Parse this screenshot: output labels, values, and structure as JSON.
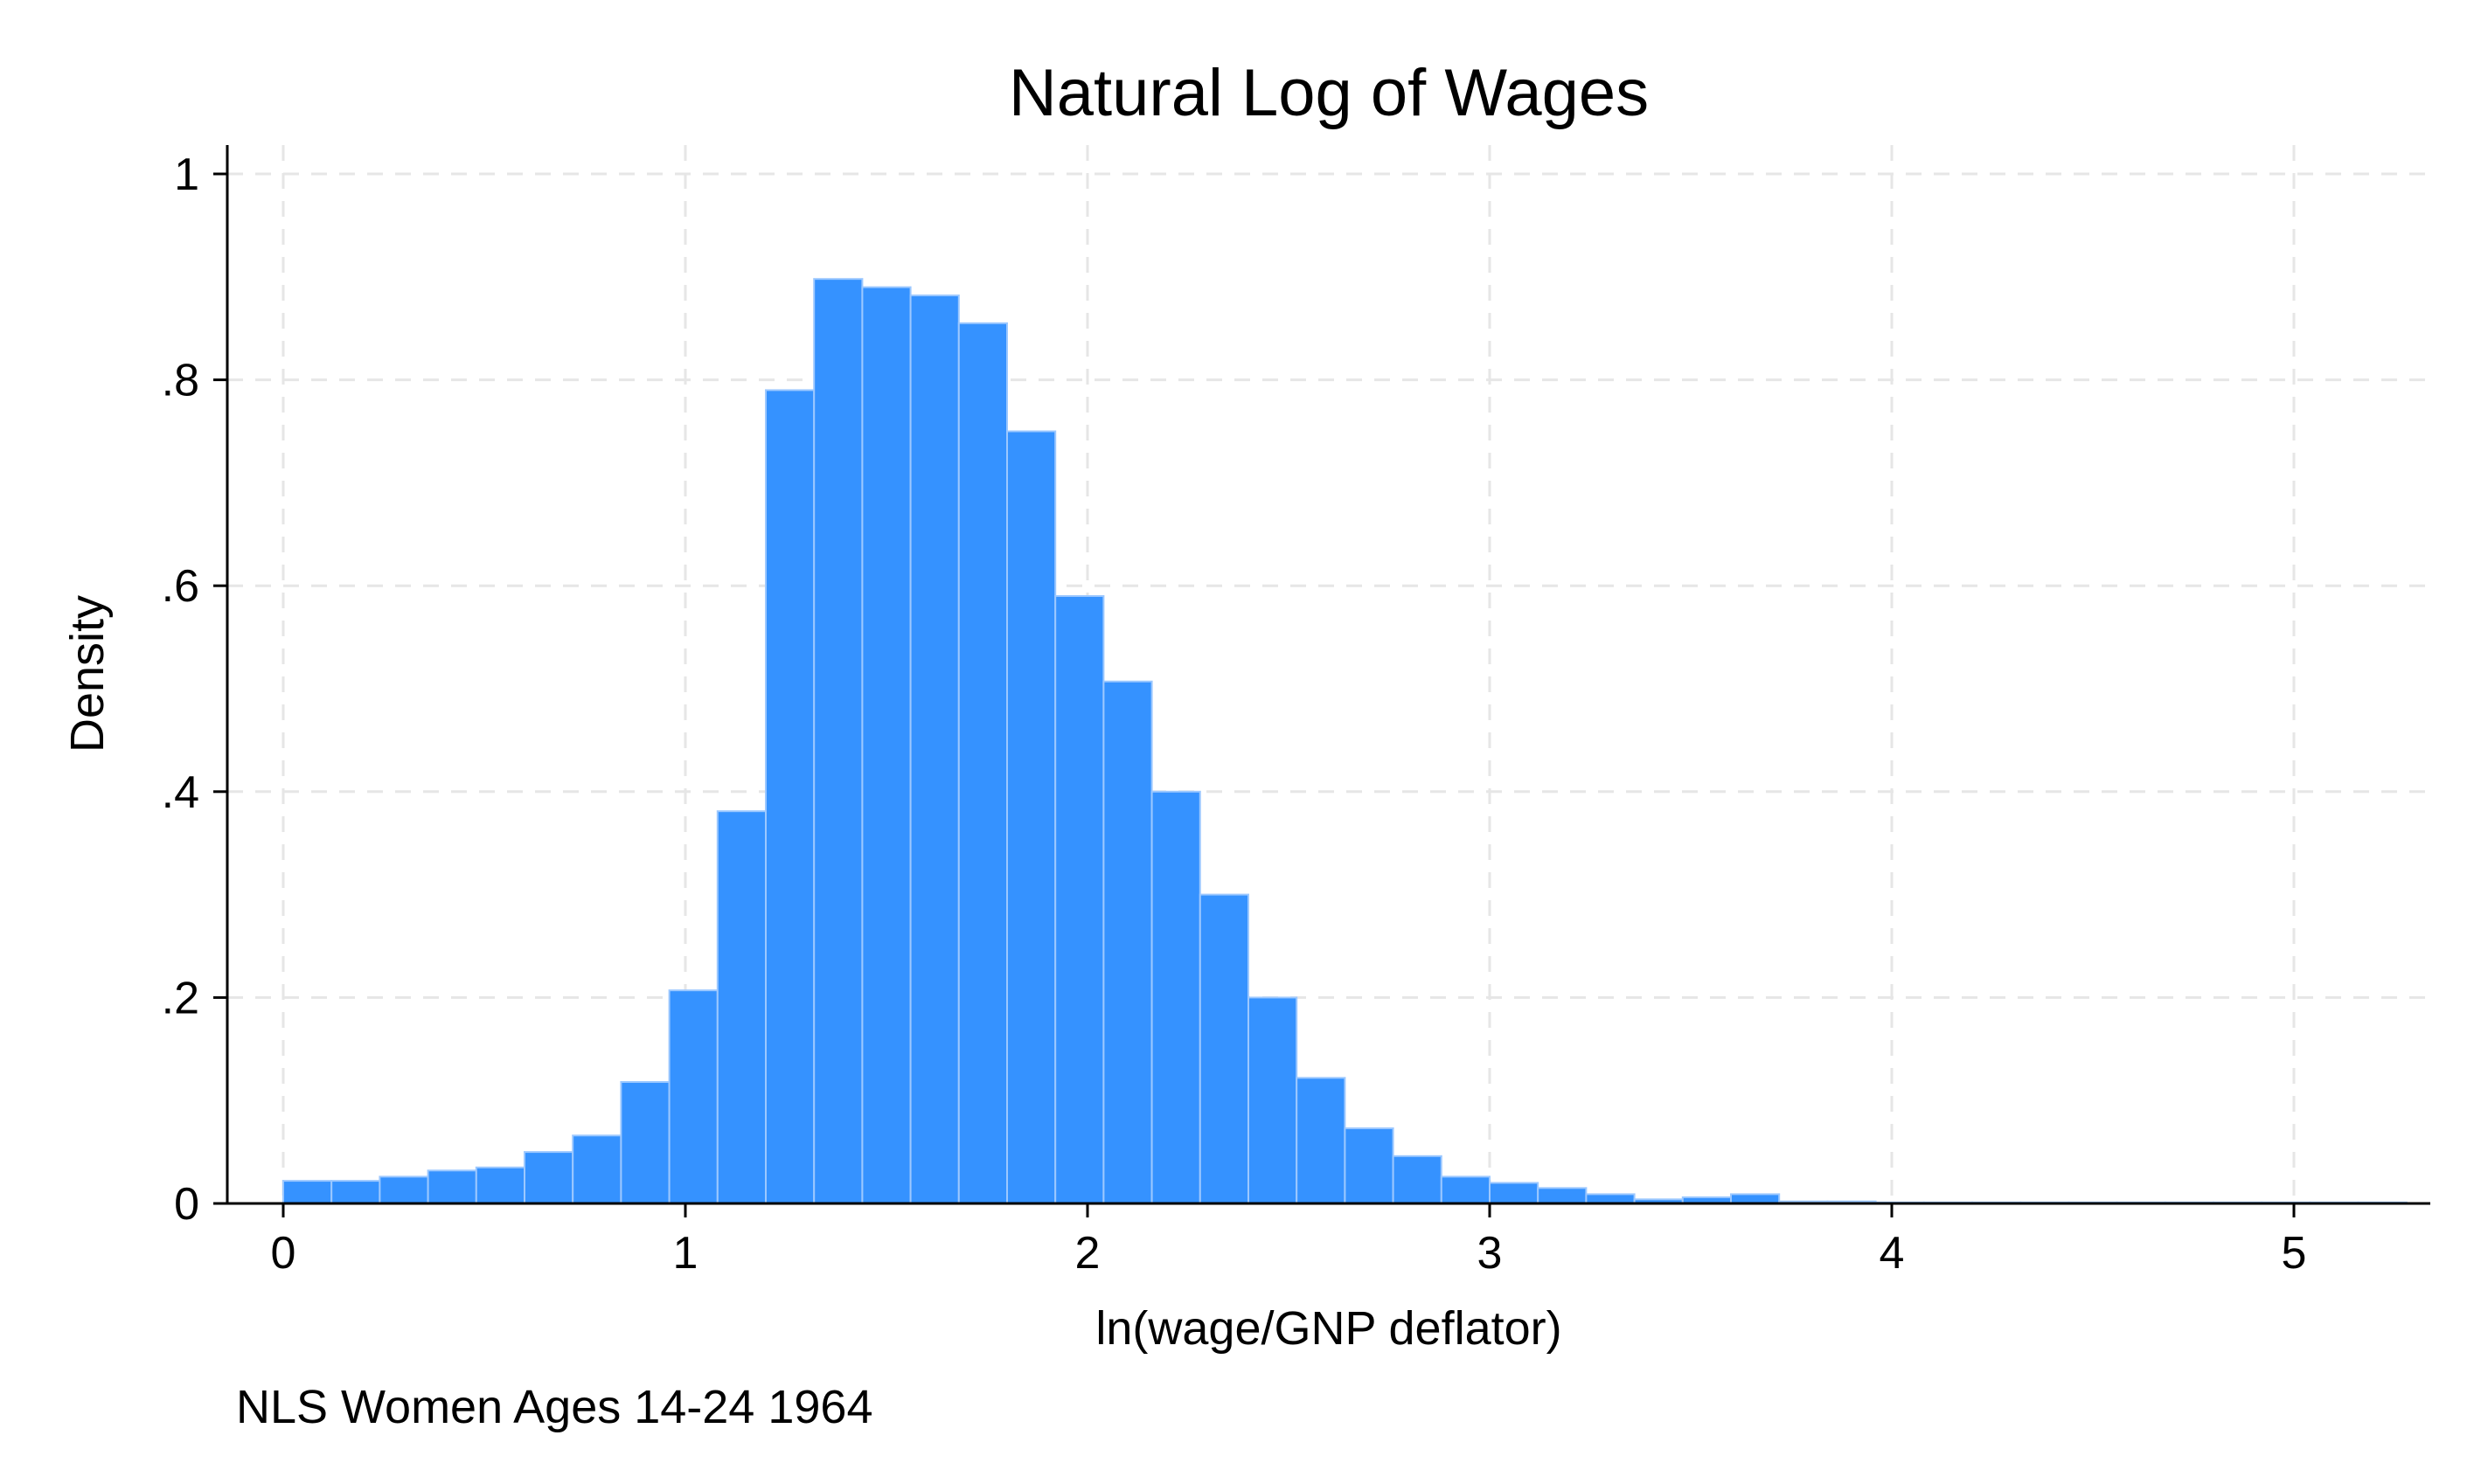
{
  "chart_data": {
    "type": "bar",
    "title": "Natural Log of Wages",
    "xlabel": "ln(wage/GNP deflator)",
    "ylabel": "Density",
    "note": "NLS Women Ages 14-24 1964",
    "xlim": [
      0,
      5.35
    ],
    "ylim": [
      0,
      1.0
    ],
    "xticks": [
      {
        "value": 0,
        "label": "0"
      },
      {
        "value": 1,
        "label": "1"
      },
      {
        "value": 2,
        "label": "2"
      },
      {
        "value": 3,
        "label": "3"
      },
      {
        "value": 4,
        "label": "4"
      },
      {
        "value": 5,
        "label": "5"
      }
    ],
    "yticks": [
      {
        "value": 0,
        "label": "0"
      },
      {
        "value": 0.2,
        "label": ".2"
      },
      {
        "value": 0.4,
        "label": ".4"
      },
      {
        "value": 0.6,
        "label": ".6"
      },
      {
        "value": 0.8,
        "label": ".8"
      },
      {
        "value": 1.0,
        "label": "1"
      }
    ],
    "grid": true,
    "bar_color": "#3592ff",
    "bin_start": 0,
    "bin_width": 0.12,
    "values": [
      0.022,
      0.022,
      0.026,
      0.032,
      0.035,
      0.05,
      0.066,
      0.118,
      0.207,
      0.381,
      0.79,
      0.898,
      0.89,
      0.882,
      0.855,
      0.75,
      0.59,
      0.507,
      0.4,
      0.3,
      0.2,
      0.122,
      0.073,
      0.046,
      0.026,
      0.02,
      0.015,
      0.009,
      0.004,
      0.006,
      0.009,
      0.002,
      0.002,
      0.001,
      0.001,
      0.001,
      0.001,
      0.001,
      0.001,
      0.001,
      0.001,
      0.001,
      0.001,
      0.001
    ]
  }
}
